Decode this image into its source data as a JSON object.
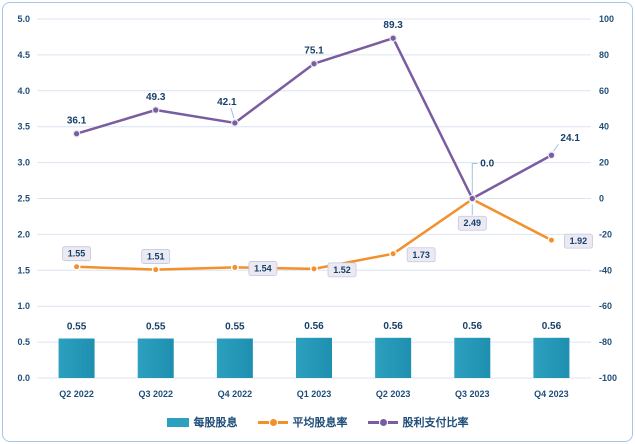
{
  "chart_data": {
    "type": "combo-bar-line",
    "title": "",
    "categories": [
      "Q2 2022",
      "Q3 2022",
      "Q4 2022",
      "Q1 2023",
      "Q2 2023",
      "Q3 2023",
      "Q4 2023"
    ],
    "series": [
      {
        "name": "每股股息",
        "chart": "bar",
        "axis": "left",
        "color": "#2CA0BE",
        "color_dark": "#1E8FB0",
        "values": [
          0.55,
          0.55,
          0.55,
          0.56,
          0.56,
          0.56,
          0.56
        ],
        "labels": [
          "0.55",
          "0.55",
          "0.55",
          "0.56",
          "0.56",
          "0.56",
          "0.56"
        ]
      },
      {
        "name": "平均股息率",
        "chart": "line",
        "axis": "left",
        "color": "#F2902C",
        "marker_ring": "#FFFFFF",
        "label_style": "boxed",
        "values": [
          1.55,
          1.51,
          1.54,
          1.52,
          1.73,
          2.49,
          1.92
        ],
        "labels": [
          "1.55",
          "1.51",
          "1.54",
          "1.52",
          "1.73",
          "2.49",
          "1.92"
        ],
        "label_pos": [
          "above",
          "above",
          "right",
          "right",
          "right",
          "below-leader",
          "right"
        ]
      },
      {
        "name": "股利支付比率",
        "chart": "line",
        "axis": "right",
        "color": "#7A5CA0",
        "marker_ring": "#E9E6F2",
        "label_style": "plain",
        "values": [
          36.1,
          49.3,
          42.1,
          75.1,
          89.3,
          0.0,
          24.1
        ],
        "labels": [
          "36.1",
          "49.3",
          "42.1",
          "75.1",
          "89.3",
          "0.0",
          "24.1"
        ],
        "label_pos": [
          "above",
          "above",
          "above-leader",
          "above",
          "above",
          "elbow-leader",
          "right-leader"
        ]
      }
    ],
    "left_axis": {
      "min": 0,
      "max": 5,
      "step": 0.5,
      "ticks": [
        "5.0",
        "4.5",
        "4.0",
        "3.5",
        "3.0",
        "2.5",
        "2.0",
        "1.5",
        "1.0",
        "0.5",
        "0.0"
      ]
    },
    "right_axis": {
      "min": -100,
      "max": 100,
      "step": 20,
      "ticks": [
        "100",
        "80",
        "60",
        "40",
        "20",
        "0",
        "-20",
        "-40",
        "-60",
        "-80",
        "-100"
      ]
    },
    "grid": true,
    "legend_position": "bottom"
  },
  "legend": {
    "items": [
      {
        "label": "每股股息",
        "swatch": "bar-swatch",
        "color": "#2CA0BE"
      },
      {
        "label": "平均股息率",
        "swatch": "line-dot-swatch",
        "color": "#F2902C"
      },
      {
        "label": "股利支付比率",
        "swatch": "line-dot-swatch",
        "color": "#7A5CA0"
      }
    ]
  },
  "colors": {
    "tick_text": "#1F4E79",
    "data_label_text": "#17406B",
    "grid": "#DCE4F2",
    "leader": "#9DC3E6",
    "boxed_label_bg": "#EBEAF3",
    "boxed_label_border": "#C8C6DD",
    "card_border": "#A5C8E9",
    "background": "#FFFFFF"
  }
}
